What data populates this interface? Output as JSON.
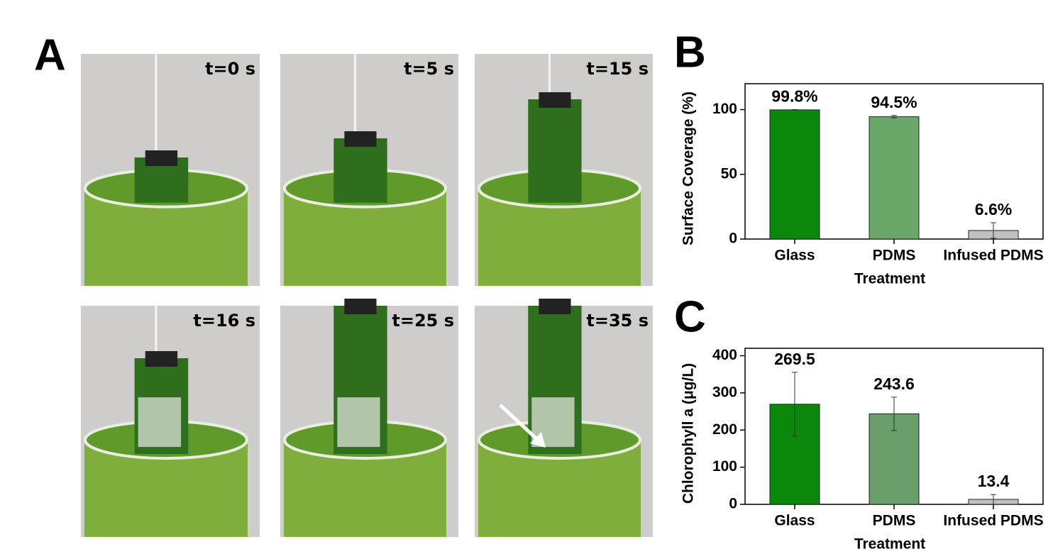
{
  "panel_a": {
    "label": "A",
    "frames": [
      "t=0 s",
      "t=5 s",
      "t=15 s",
      "t=16 s",
      "t=25 s",
      "t=35 s"
    ]
  },
  "chart_data": [
    {
      "type": "bar",
      "panel_label": "B",
      "x_label": "Treatment",
      "y_label": "Surface Coverage (%)",
      "categories": [
        "Glass",
        "PDMS",
        "Infused PDMS"
      ],
      "values": [
        99.8,
        94.5,
        6.6
      ],
      "value_labels": [
        "99.8%",
        "94.5%",
        "6.6%"
      ],
      "errors": [
        0.2,
        1,
        6
      ],
      "colors": [
        "#0b870b",
        "#6aa86a",
        "#c0c0c0"
      ],
      "ylim": [
        0,
        120
      ],
      "yticks": [
        0,
        50,
        100
      ]
    },
    {
      "type": "bar",
      "panel_label": "C",
      "x_label": "Treatment",
      "y_label": "Chlorophyll a (μg/L)",
      "categories": [
        "Glass",
        "PDMS",
        "Infused PDMS"
      ],
      "values": [
        269.5,
        243.6,
        13.4
      ],
      "errors": [
        86,
        45,
        13
      ],
      "colors": [
        "#0b870b",
        "#6a9e6a",
        "#c0c0c0"
      ],
      "ylim": [
        0,
        420
      ],
      "yticks": [
        0,
        100,
        200,
        300,
        400
      ]
    }
  ]
}
